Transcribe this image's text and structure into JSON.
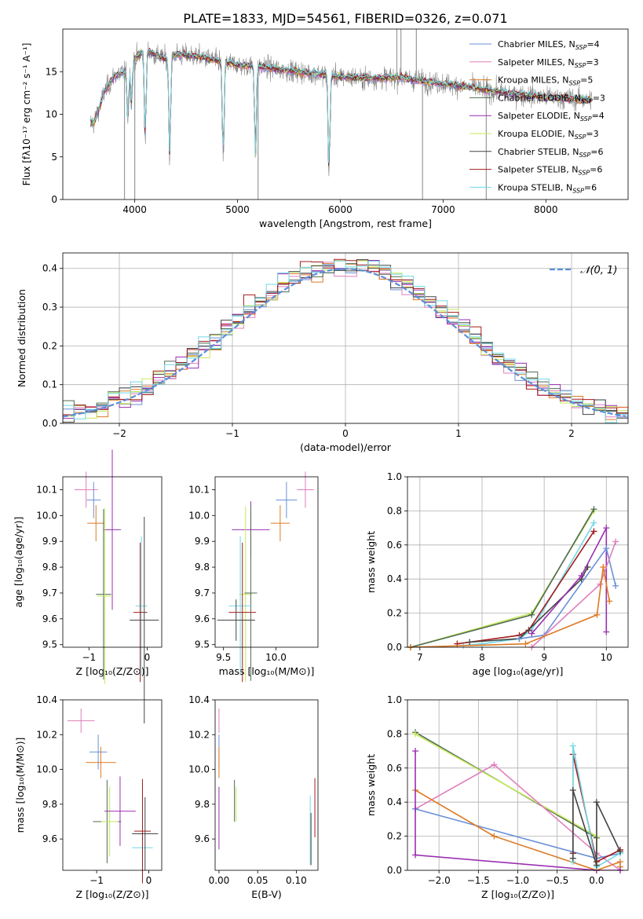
{
  "title": "PLATE=1833, MJD=54561, FIBERID=0326, z=0.071",
  "colors": {
    "chabrier_miles": "#6a8fd6",
    "salpeter_miles": "#e07fbd",
    "kroupa_miles": "#dd7a23",
    "chabrier_elodie": "#4f6b52",
    "salpeter_elodie": "#9a2fb0",
    "kroupa_elodie": "#c6e85a",
    "chabrier_stelib": "#444444",
    "salpeter_stelib": "#a31c1c",
    "kroupa_stelib": "#72d8e6",
    "data": "#888888",
    "normal": "#5b8ed8"
  },
  "chart_data": [
    {
      "id": "spectrum",
      "type": "line",
      "xlabel": "wavelength [Angstrom, rest frame]",
      "ylabel": "Flux [fλ10⁻¹⁷ erg cm⁻² s⁻¹ A⁻¹]",
      "xlim": [
        3300,
        8800
      ],
      "ylim": [
        0,
        20
      ],
      "xticks": [
        4000,
        5000,
        6000,
        7000,
        8000
      ],
      "yticks": [
        0,
        5,
        10,
        15
      ],
      "legend_position": "top-right",
      "continuum": {
        "x": [
          3600,
          3650,
          3700,
          3800,
          3900,
          4000,
          4100,
          4200,
          4300,
          4400,
          4600,
          4800,
          5000,
          5200,
          5500,
          5800,
          6000,
          6300,
          6600,
          6800,
          7000,
          7300,
          7600,
          8000,
          8400
        ],
        "y": [
          9.0,
          10.5,
          12.5,
          14.5,
          15.0,
          16.5,
          17.5,
          17.0,
          16.5,
          17.0,
          16.8,
          16.3,
          15.8,
          15.6,
          15.1,
          14.7,
          14.4,
          14.2,
          14.3,
          13.9,
          13.6,
          13.1,
          12.5,
          12.0,
          11.7
        ]
      },
      "series": [
        {
          "name": "Chabrier MILES, N_SSP=4",
          "label_main": "Chabrier MILES, N",
          "label_sub": "SSP",
          "label_tail": "=4",
          "color": "#6a8fd6"
        },
        {
          "name": "Salpeter MILES, N_SSP=3",
          "label_main": "Salpeter MILES, N",
          "label_sub": "SSP",
          "label_tail": "=3",
          "color": "#e07fbd"
        },
        {
          "name": "Kroupa MILES, N_SSP=5",
          "label_main": "Kroupa MILES, N",
          "label_sub": "SSP",
          "label_tail": "=5",
          "color": "#dd7a23"
        },
        {
          "name": "Chabrier ELODIE, N_SSP=3",
          "label_main": "Chabrier ELODIE, N",
          "label_sub": "SSP",
          "label_tail": "=3",
          "color": "#4f6b52"
        },
        {
          "name": "Salpeter ELODIE, N_SSP=4",
          "label_main": "Salpeter ELODIE, N",
          "label_sub": "SSP",
          "label_tail": "=4",
          "color": "#9a2fb0"
        },
        {
          "name": "Kroupa ELODIE, N_SSP=3",
          "label_main": "Kroupa ELODIE, N",
          "label_sub": "SSP",
          "label_tail": "=3",
          "color": "#c6e85a"
        },
        {
          "name": "Chabrier STELIB, N_SSP=6",
          "label_main": "Chabrier STELIB, N",
          "label_sub": "SSP",
          "label_tail": "=6",
          "color": "#444444"
        },
        {
          "name": "Salpeter STELIB, N_SSP=6",
          "label_main": "Salpeter STELIB, N",
          "label_sub": "SSP",
          "label_tail": "=6",
          "color": "#a31c1c"
        },
        {
          "name": "Kroupa STELIB, N_SSP=6",
          "label_main": "Kroupa STELIB, N",
          "label_sub": "SSP",
          "label_tail": "=6",
          "color": "#72d8e6"
        }
      ]
    },
    {
      "id": "residuals",
      "type": "histogram",
      "xlabel": "(data-model)/error",
      "ylabel": "Normed distribution",
      "xlim": [
        -2.5,
        2.5
      ],
      "ylim": [
        0,
        0.44
      ],
      "xticks": [
        -2,
        -1,
        0,
        1,
        2
      ],
      "yticks": [
        0.0,
        0.1,
        0.2,
        0.3,
        0.4
      ],
      "grid": true,
      "normal_label": "𝒩(0, 1)",
      "legend_position": "top-right"
    },
    {
      "id": "age_vs_Z",
      "type": "errorbar",
      "xlabel": "Z [log₁₀(Z/Z⊙)]",
      "ylabel": "age  [log₁₀(age/yr)]",
      "xlim": [
        -1.45,
        0.25
      ],
      "ylim": [
        9.49,
        10.15
      ],
      "xticks": [
        -1,
        0
      ],
      "yticks": [
        9.5,
        9.6,
        9.7,
        9.8,
        9.9,
        10.0,
        10.1
      ],
      "points": [
        {
          "x": -1.05,
          "y": 10.1,
          "xerr": 0.2,
          "yerr": 0.07,
          "color": "#e07fbd"
        },
        {
          "x": -0.92,
          "y": 10.06,
          "xerr": 0.12,
          "yerr": 0.07,
          "color": "#6a8fd6"
        },
        {
          "x": -0.88,
          "y": 9.97,
          "xerr": 0.15,
          "yerr": 0.07,
          "color": "#dd7a23"
        },
        {
          "x": -0.6,
          "y": 9.945,
          "xerr": 0.15,
          "yerr": 0.31,
          "color": "#9a2fb0"
        },
        {
          "x": -0.75,
          "y": 9.695,
          "xerr": 0.13,
          "yerr": 0.33,
          "color": "#4f6b52"
        },
        {
          "x": -0.73,
          "y": 9.688,
          "xerr": 0.13,
          "yerr": 0.34,
          "color": "#c6e85a"
        },
        {
          "x": -0.1,
          "y": 9.65,
          "xerr": 0.1,
          "yerr": 0.27,
          "color": "#72d8e6"
        },
        {
          "x": -0.12,
          "y": 9.625,
          "xerr": 0.12,
          "yerr": 0.27,
          "color": "#a31c1c"
        },
        {
          "x": -0.05,
          "y": 9.595,
          "xerr": 0.25,
          "yerr": 0.4,
          "color": "#444444"
        }
      ]
    },
    {
      "id": "age_vs_mass",
      "type": "errorbar",
      "xlabel": "mass [log₁₀(M/M⊙)]",
      "ylabel": "",
      "xlim": [
        9.42,
        10.4
      ],
      "ylim": [
        9.49,
        10.15
      ],
      "xticks": [
        9.5,
        10.0
      ],
      "yticks": [
        9.5,
        9.6,
        9.7,
        9.8,
        9.9,
        10.0,
        10.1
      ],
      "points": [
        {
          "x": 10.28,
          "y": 10.1,
          "xerr": 0.08,
          "yerr": 0.07,
          "color": "#e07fbd"
        },
        {
          "x": 10.1,
          "y": 10.06,
          "xerr": 0.1,
          "yerr": 0.07,
          "color": "#6a8fd6"
        },
        {
          "x": 10.04,
          "y": 9.97,
          "xerr": 0.09,
          "yerr": 0.07,
          "color": "#dd7a23"
        },
        {
          "x": 9.76,
          "y": 9.945,
          "xerr": 0.18,
          "yerr": 0.11,
          "color": "#9a2fb0"
        },
        {
          "x": 9.71,
          "y": 9.695,
          "xerr": 0.06,
          "yerr": 0.34,
          "color": "#c6e85a"
        },
        {
          "x": 9.76,
          "y": 9.7,
          "xerr": 0.06,
          "yerr": 0.34,
          "color": "#4f6b52"
        },
        {
          "x": 9.66,
          "y": 9.65,
          "xerr": 0.11,
          "yerr": 0.27,
          "color": "#72d8e6"
        },
        {
          "x": 9.68,
          "y": 9.625,
          "xerr": 0.13,
          "yerr": 0.27,
          "color": "#a31c1c"
        },
        {
          "x": 9.62,
          "y": 9.595,
          "xerr": 0.18,
          "yerr": 0.08,
          "color": "#444444"
        }
      ]
    },
    {
      "id": "weight_vs_age",
      "type": "line",
      "xlabel": "age  [log₁₀(age/yr)]",
      "ylabel": "mass weight",
      "xlim": [
        6.8,
        10.35
      ],
      "ylim": [
        0,
        1.0
      ],
      "xticks": [
        7,
        8,
        9,
        10
      ],
      "yticks": [
        0.0,
        0.2,
        0.4,
        0.6,
        0.8,
        1.0
      ],
      "grid": true,
      "series": [
        {
          "color": "#c6e85a",
          "x": [
            6.85,
            8.8,
            9.8
          ],
          "y": [
            0.0,
            0.2,
            0.8
          ]
        },
        {
          "color": "#4f6b52",
          "x": [
            6.85,
            8.8,
            9.8
          ],
          "y": [
            0.0,
            0.19,
            0.81
          ]
        },
        {
          "color": "#72d8e6",
          "x": [
            7.7,
            8.0,
            8.6,
            8.8,
            9.8
          ],
          "y": [
            0.01,
            0.02,
            0.05,
            0.1,
            0.73
          ]
        },
        {
          "color": "#a31c1c",
          "x": [
            7.6,
            8.6,
            8.75,
            9.8
          ],
          "y": [
            0.02,
            0.07,
            0.1,
            0.68
          ]
        },
        {
          "color": "#444444",
          "x": [
            7.8,
            8.6,
            9.6,
            9.7
          ],
          "y": [
            0.03,
            0.05,
            0.4,
            0.47
          ]
        },
        {
          "color": "#9a2fb0",
          "x": [
            8.8,
            9.6,
            10.0,
            10.0
          ],
          "y": [
            0.08,
            0.42,
            0.7,
            0.09
          ]
        },
        {
          "color": "#6a8fd6",
          "x": [
            8.6,
            9.0,
            10.0,
            10.15
          ],
          "y": [
            0.05,
            0.07,
            0.58,
            0.36
          ]
        },
        {
          "color": "#e07fbd",
          "x": [
            8.8,
            9.9,
            10.15
          ],
          "y": [
            0.0,
            0.37,
            0.62
          ]
        },
        {
          "color": "#dd7a23",
          "x": [
            6.85,
            8.7,
            9.85,
            9.95,
            10.05
          ],
          "y": [
            0.0,
            0.02,
            0.19,
            0.47,
            0.27
          ]
        }
      ]
    },
    {
      "id": "mass_vs_Z",
      "type": "errorbar",
      "xlabel": "Z [log₁₀(Z/Z⊙)]",
      "ylabel": "mass [log₁₀(M/M⊙)]",
      "xlim": [
        -1.65,
        0.25
      ],
      "ylim": [
        9.42,
        10.4
      ],
      "xticks": [
        -1,
        0
      ],
      "yticks": [
        9.6,
        9.8,
        10.0,
        10.2,
        10.4
      ],
      "points": [
        {
          "x": -1.3,
          "y": 10.28,
          "xerr": 0.26,
          "yerr": 0.07,
          "color": "#e07fbd"
        },
        {
          "x": -0.97,
          "y": 10.1,
          "xerr": 0.17,
          "yerr": 0.1,
          "color": "#6a8fd6"
        },
        {
          "x": -0.92,
          "y": 10.04,
          "xerr": 0.29,
          "yerr": 0.09,
          "color": "#dd7a23"
        },
        {
          "x": -0.8,
          "y": 9.7,
          "xerr": 0.27,
          "yerr": 0.24,
          "color": "#4f6b52"
        },
        {
          "x": -0.75,
          "y": 9.7,
          "xerr": 0.16,
          "yerr": 0.2,
          "color": "#c6e85a"
        },
        {
          "x": -0.55,
          "y": 9.76,
          "xerr": 0.3,
          "yerr": 0.2,
          "color": "#9a2fb0"
        },
        {
          "x": -0.12,
          "y": 9.55,
          "xerr": 0.2,
          "yerr": 0.2,
          "color": "#72d8e6"
        },
        {
          "x": -0.12,
          "y": 9.645,
          "xerr": 0.16,
          "yerr": 0.3,
          "color": "#a31c1c"
        },
        {
          "x": -0.07,
          "y": 9.63,
          "xerr": 0.25,
          "yerr": 0.21,
          "color": "#444444"
        }
      ]
    },
    {
      "id": "mass_vs_ebv",
      "type": "errorbar",
      "xlabel": "E(B-V)",
      "ylabel": "",
      "xlim": [
        -0.005,
        0.128
      ],
      "ylim": [
        9.42,
        10.4
      ],
      "xticks": [
        0.0,
        0.05,
        0.1
      ],
      "tick_labels": [
        "0.00",
        "0.05",
        "0.10"
      ],
      "yticks": [
        9.6,
        9.8,
        10.0,
        10.2,
        10.4
      ],
      "points": [
        {
          "x": 0.0,
          "y": 10.28,
          "xerr": 0.0,
          "yerr": 0.07,
          "color": "#e07fbd"
        },
        {
          "x": 0.0,
          "y": 10.1,
          "xerr": 0.0,
          "yerr": 0.1,
          "color": "#6a8fd6"
        },
        {
          "x": 0.0,
          "y": 10.04,
          "xerr": 0.0,
          "yerr": 0.09,
          "color": "#dd7a23"
        },
        {
          "x": 0.0,
          "y": 9.72,
          "xerr": 0.0,
          "yerr": 0.18,
          "color": "#9a2fb0"
        },
        {
          "x": 0.02,
          "y": 9.82,
          "xerr": 0.0,
          "yerr": 0.12,
          "color": "#4f6b52"
        },
        {
          "x": 0.022,
          "y": 9.8,
          "xerr": 0.0,
          "yerr": 0.1,
          "color": "#c6e85a"
        },
        {
          "x": 0.118,
          "y": 9.65,
          "xerr": 0.0,
          "yerr": 0.2,
          "color": "#72d8e6"
        },
        {
          "x": 0.119,
          "y": 9.6,
          "xerr": 0.0,
          "yerr": 0.15,
          "color": "#444444"
        },
        {
          "x": 0.124,
          "y": 9.78,
          "xerr": 0.0,
          "yerr": 0.17,
          "color": "#a31c1c"
        }
      ]
    },
    {
      "id": "weight_vs_Z",
      "type": "line",
      "xlabel": "Z [log₁₀(Z/Z⊙)]",
      "ylabel": "mass weight",
      "xlim": [
        -2.4,
        0.4
      ],
      "ylim": [
        0,
        1.0
      ],
      "xticks": [
        -2.0,
        -1.5,
        -1.0,
        -0.5,
        0.0
      ],
      "tick_labels": [
        "−2.0",
        "−1.5",
        "−1.0",
        "−0.5",
        "0.0"
      ],
      "yticks": [
        0.0,
        0.2,
        0.4,
        0.6,
        0.8,
        1.0
      ],
      "grid": true,
      "series": [
        {
          "color": "#4f6b52",
          "x": [
            -2.3,
            0.0,
            0.0
          ],
          "y": [
            0.81,
            0.19,
            0.0
          ]
        },
        {
          "color": "#c6e85a",
          "x": [
            -2.3,
            0.0,
            0.0
          ],
          "y": [
            0.8,
            0.2,
            0.0
          ]
        },
        {
          "color": "#e07fbd",
          "x": [
            -2.3,
            -1.3,
            0.0,
            0.3
          ],
          "y": [
            0.36,
            0.62,
            0.1,
            0.0
          ]
        },
        {
          "color": "#6a8fd6",
          "x": [
            -2.3,
            -2.3,
            0.0,
            0.3
          ],
          "y": [
            0.36,
            0.36,
            0.07,
            0.1
          ]
        },
        {
          "color": "#dd7a23",
          "x": [
            -2.3,
            -1.3,
            0.0,
            0.3,
            0.3
          ],
          "y": [
            0.47,
            0.2,
            0.0,
            0.05,
            0.02
          ]
        },
        {
          "color": "#9a2fb0",
          "x": [
            -2.3,
            -2.3,
            0.0,
            0.3
          ],
          "y": [
            0.7,
            0.09,
            0.0,
            0.0
          ]
        },
        {
          "color": "#a31c1c",
          "x": [
            -0.3,
            -0.3,
            0.0,
            0.3
          ],
          "y": [
            0.1,
            0.68,
            0.05,
            0.12
          ]
        },
        {
          "color": "#72d8e6",
          "x": [
            -0.3,
            -0.3,
            0.0,
            0.3
          ],
          "y": [
            0.05,
            0.73,
            0.02,
            0.1
          ]
        },
        {
          "color": "#444444",
          "x": [
            -0.3,
            -0.3,
            0.0,
            0.0,
            0.3
          ],
          "y": [
            0.07,
            0.47,
            0.03,
            0.4,
            0.11
          ]
        }
      ]
    }
  ]
}
